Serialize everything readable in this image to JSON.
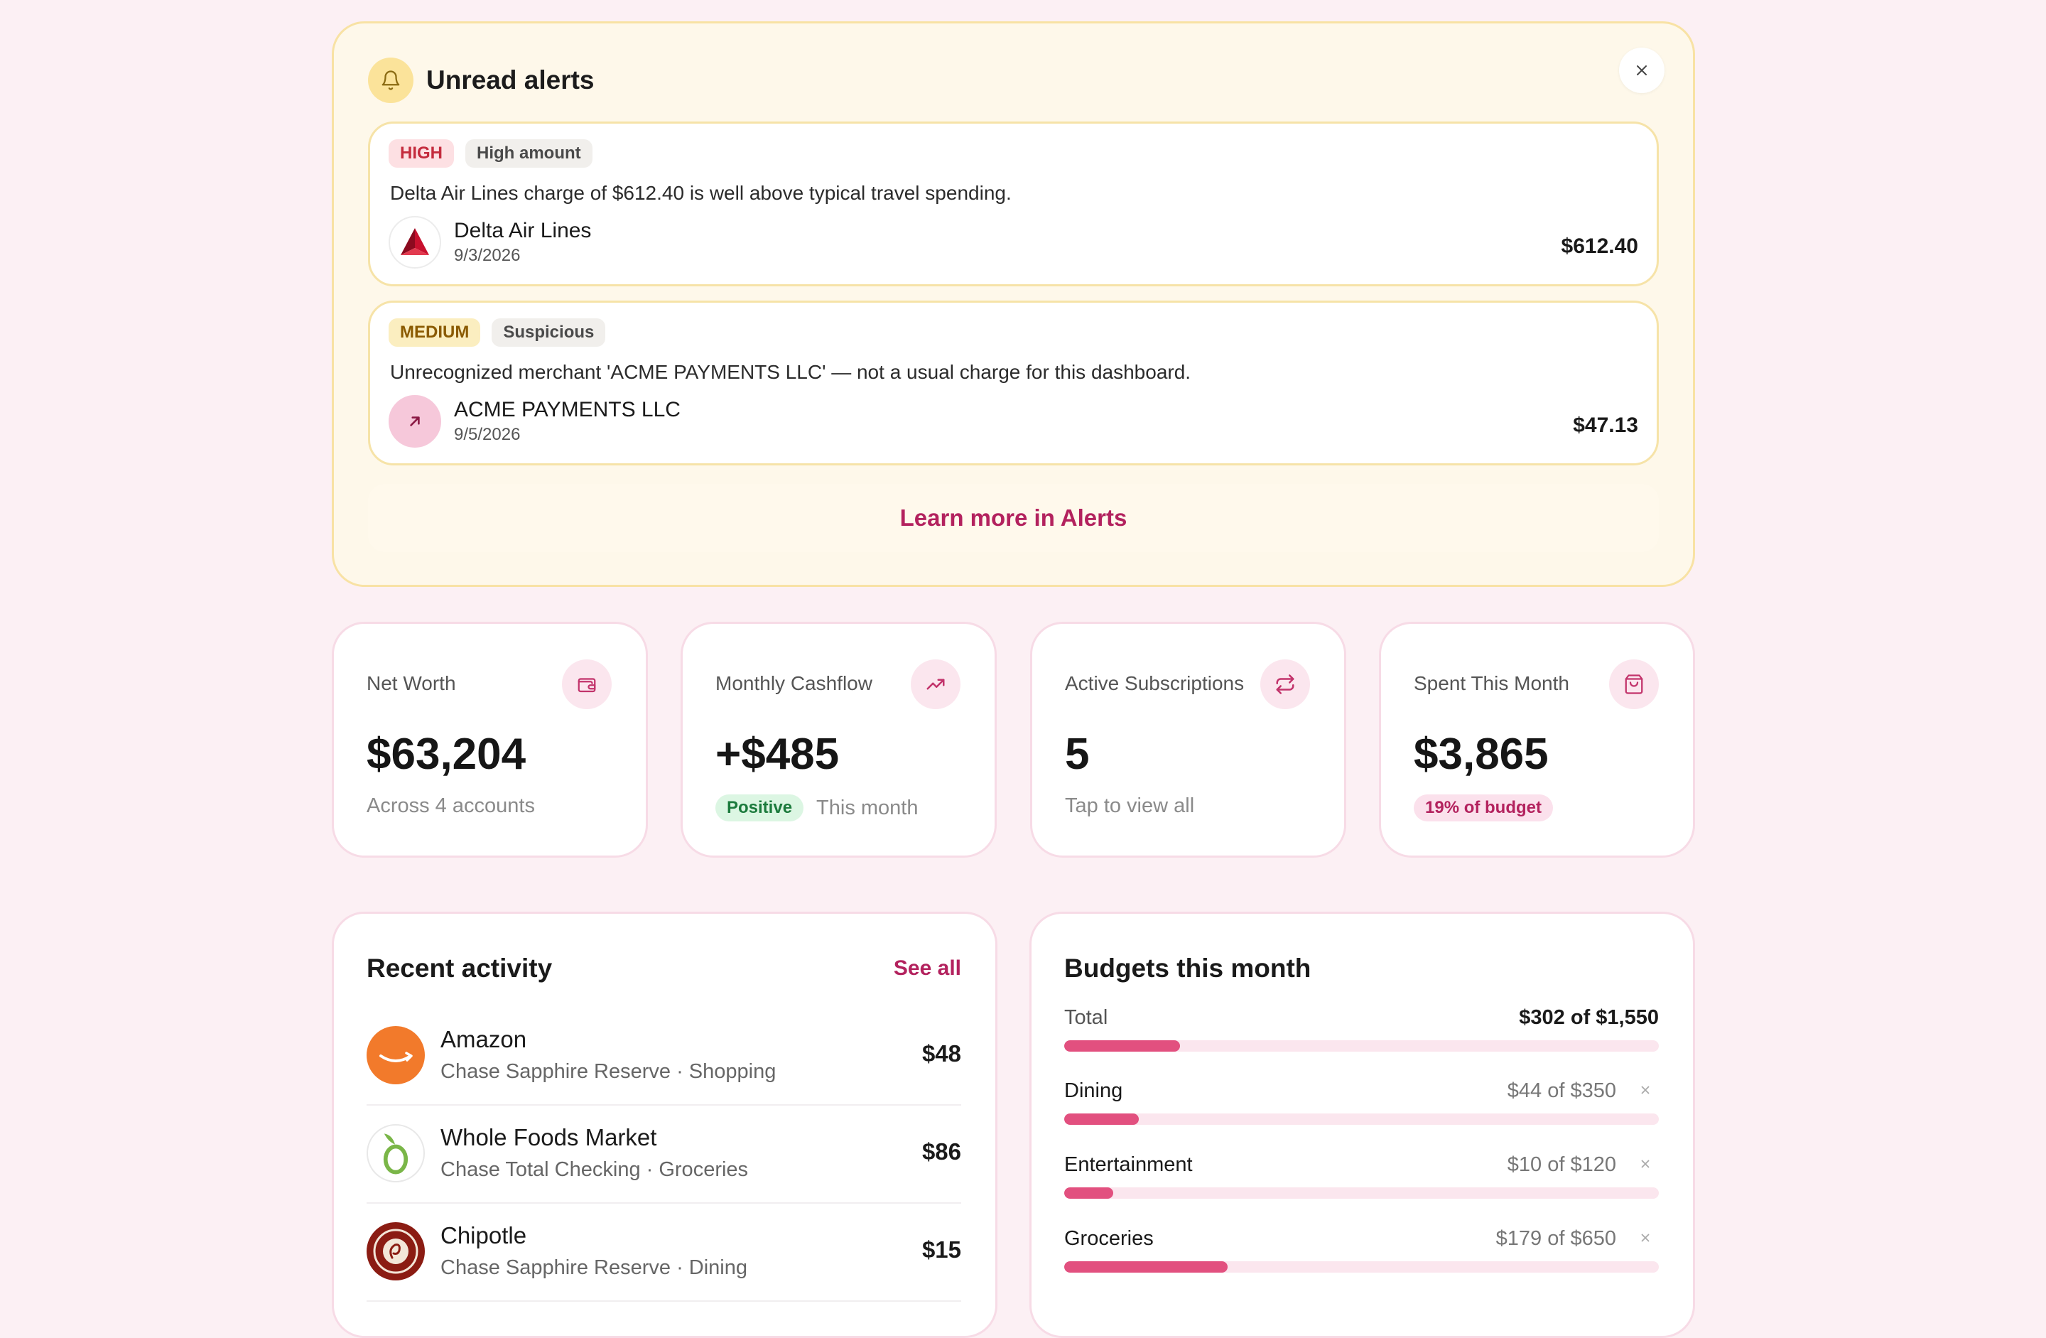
{
  "alerts": {
    "title": "Unread alerts",
    "items": [
      {
        "severity": "HIGH",
        "type": "High amount",
        "message": "Delta Air Lines charge of $612.40 is well above typical travel spending.",
        "merchant": "Delta Air Lines",
        "date": "9/3/2026",
        "amount": "$612.40",
        "logo_icon": "delta-logo-icon"
      },
      {
        "severity": "MEDIUM",
        "type": "Suspicious",
        "message": "Unrecognized merchant 'ACME PAYMENTS LLC' — not a usual charge for this dashboard.",
        "merchant": "ACME PAYMENTS LLC",
        "date": "9/5/2026",
        "amount": "$47.13",
        "logo_icon": "arrow-up-right-icon"
      }
    ],
    "learn_more": "Learn more in Alerts"
  },
  "stats": [
    {
      "label": "Net Worth",
      "value": "$63,204",
      "sub": "Across 4 accounts",
      "icon": "wallet-icon"
    },
    {
      "label": "Monthly Cashflow",
      "value": "+$485",
      "badge": "Positive",
      "sub": "This month",
      "icon": "trending-up-icon"
    },
    {
      "label": "Active Subscriptions",
      "value": "5",
      "sub": "Tap to view all",
      "icon": "repeat-icon"
    },
    {
      "label": "Spent This Month",
      "value": "$3,865",
      "badge": "19% of budget",
      "icon": "shopping-bag-icon"
    }
  ],
  "recent": {
    "title": "Recent activity",
    "see_all": "See all",
    "items": [
      {
        "name": "Amazon",
        "sub": "Chase Sapphire Reserve · Shopping",
        "amount": "$48",
        "logo_icon": "amazon-logo-icon"
      },
      {
        "name": "Whole Foods Market",
        "sub": "Chase Total Checking · Groceries",
        "amount": "$86",
        "logo_icon": "whole-foods-logo-icon"
      },
      {
        "name": "Chipotle",
        "sub": "Chase Sapphire Reserve · Dining",
        "amount": "$15",
        "logo_icon": "chipotle-logo-icon"
      }
    ]
  },
  "budgets": {
    "title": "Budgets this month",
    "total": {
      "label": "Total",
      "value": "$302 of $1,550",
      "progress": 0.195
    },
    "items": [
      {
        "label": "Dining",
        "value": "$44 of $350",
        "progress": 0.126
      },
      {
        "label": "Entertainment",
        "value": "$10 of $120",
        "progress": 0.083
      },
      {
        "label": "Groceries",
        "value": "$179 of $650",
        "progress": 0.275
      }
    ]
  },
  "colors": {
    "accent": "#b3225e",
    "bar_fill": "#e2507f",
    "page_bg": "#fcf0f4",
    "alert_bg": "#fef8ea"
  }
}
